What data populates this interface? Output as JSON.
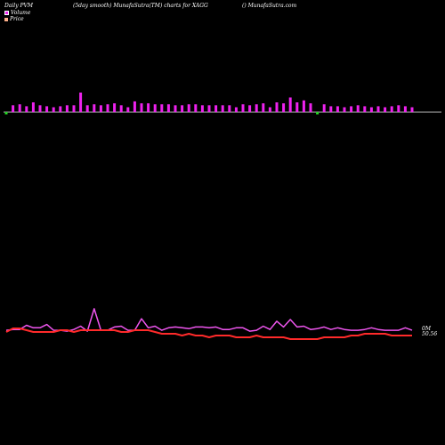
{
  "header": {
    "left": "Daily PVM",
    "middle": "(5day smooth) MunafaSutra(TM) charts for XAGG",
    "right": "() MunafaSutra.com"
  },
  "legend": [
    {
      "label": "Volume",
      "color": "#ee22ee"
    },
    {
      "label": "Price",
      "color": "#ff3b3b"
    }
  ],
  "value_label_1": "0M",
  "value_label_2": "50.56",
  "colors": {
    "background": "#000000",
    "volume_up": "#ee22ee",
    "volume_down": "#22dd22",
    "pvm_line": "#ee55ee",
    "price_line": "#ff2a2a",
    "baseline": "#bbbbbb"
  },
  "chart_data": {
    "type": "bar+line",
    "x": [
      1,
      2,
      3,
      4,
      5,
      6,
      7,
      8,
      9,
      10,
      11,
      12,
      13,
      14,
      15,
      16,
      17,
      18,
      19,
      20,
      21,
      22,
      23,
      24,
      25,
      26,
      27,
      28,
      29,
      30,
      31,
      32,
      33,
      34,
      35,
      36,
      37,
      38,
      39,
      40,
      41,
      42,
      43,
      44,
      45,
      46,
      47,
      48,
      49,
      50,
      51,
      52,
      53,
      54,
      55,
      56,
      57,
      58,
      59,
      60,
      61
    ],
    "series": [
      {
        "name": "Volume",
        "kind": "bar",
        "direction": [
          "down",
          "up",
          "up",
          "up",
          "up",
          "up",
          "up",
          "up",
          "up",
          "up",
          "up",
          "up",
          "up",
          "up",
          "up",
          "up",
          "up",
          "up",
          "up",
          "up",
          "up",
          "up",
          "up",
          "up",
          "up",
          "up",
          "up",
          "up",
          "up",
          "up",
          "up",
          "up",
          "up",
          "up",
          "up",
          "up",
          "up",
          "up",
          "up",
          "up",
          "up",
          "up",
          "up",
          "up",
          "up",
          "up",
          "down",
          "up",
          "up",
          "up",
          "up",
          "up",
          "up",
          "up",
          "up",
          "up",
          "up",
          "up",
          "up",
          "up",
          "up"
        ],
        "values": [
          0.35,
          0.35,
          0.4,
          0.3,
          0.5,
          0.35,
          0.3,
          0.25,
          0.3,
          0.35,
          0.35,
          1,
          0.35,
          0.4,
          0.35,
          0.4,
          0.45,
          0.35,
          0.25,
          0.55,
          0.45,
          0.45,
          0.4,
          0.4,
          0.4,
          0.35,
          0.35,
          0.4,
          0.4,
          0.35,
          0.35,
          0.35,
          0.35,
          0.35,
          0.25,
          0.4,
          0.35,
          0.4,
          0.45,
          0.25,
          0.5,
          0.45,
          0.75,
          0.5,
          0.6,
          0.45,
          0.3,
          0.4,
          0.3,
          0.3,
          0.25,
          0.3,
          0.35,
          0.3,
          0.25,
          0.3,
          0.25,
          0.3,
          0.35,
          0.3,
          0.25
        ]
      },
      {
        "name": "PVM",
        "kind": "line",
        "values": [
          0.8,
          0.85,
          0.85,
          1.1,
          0.95,
          0.95,
          1.15,
          0.8,
          0.8,
          0.75,
          0.85,
          1.05,
          0.75,
          2.1,
          0.8,
          0.8,
          1,
          1.05,
          0.8,
          0.8,
          1.5,
          0.95,
          1.05,
          0.8,
          0.95,
          1.0,
          0.95,
          0.9,
          1.0,
          1.0,
          0.95,
          1.0,
          0.85,
          0.85,
          0.95,
          0.95,
          0.75,
          0.8,
          1.05,
          0.85,
          1.35,
          1.0,
          1.45,
          1.0,
          1.05,
          0.85,
          0.9,
          1.0,
          0.85,
          0.95,
          0.85,
          0.8,
          0.8,
          0.85,
          0.95,
          0.85,
          0.8,
          0.8,
          0.8,
          0.95,
          0.8
        ]
      },
      {
        "name": "Price",
        "kind": "line",
        "values": [
          50.58,
          50.6,
          50.6,
          50.59,
          50.58,
          50.58,
          50.58,
          50.58,
          50.59,
          50.59,
          50.58,
          50.59,
          50.59,
          50.59,
          50.59,
          50.59,
          50.59,
          50.58,
          50.58,
          50.59,
          50.59,
          50.59,
          50.58,
          50.57,
          50.57,
          50.57,
          50.56,
          50.57,
          50.56,
          50.56,
          50.55,
          50.56,
          50.56,
          50.56,
          50.55,
          50.55,
          50.55,
          50.56,
          50.55,
          50.55,
          50.55,
          50.55,
          50.54,
          50.54,
          50.54,
          50.54,
          50.54,
          50.55,
          50.55,
          50.55,
          50.55,
          50.56,
          50.56,
          50.57,
          50.57,
          50.57,
          50.57,
          50.56,
          50.56,
          50.56,
          50.56
        ]
      }
    ]
  }
}
